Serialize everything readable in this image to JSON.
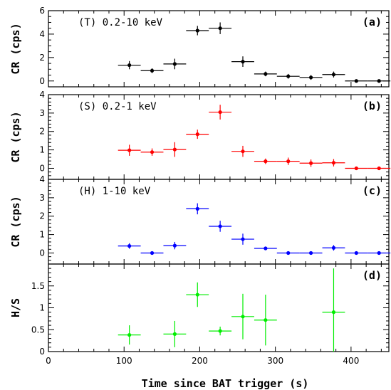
{
  "chart_data": {
    "type": "scatter",
    "xlabel": "Time since BAT trigger (s)",
    "xlim": [
      0,
      450
    ],
    "x_ticks": [
      0,
      100,
      200,
      300,
      400
    ],
    "panels": [
      {
        "id": "a",
        "tag": "(a)",
        "label": "(T) 0.2-10 keV",
        "ylabel": "CR (cps)",
        "ylim": [
          -0.5,
          6
        ],
        "y_ticks": [
          0,
          2,
          4,
          6
        ],
        "color": "#000000",
        "points": [
          {
            "x": 107,
            "xerr": 15,
            "y": 1.35,
            "yerr": 0.35
          },
          {
            "x": 137,
            "xerr": 15,
            "y": 0.88,
            "yerr": 0.2
          },
          {
            "x": 167,
            "xerr": 15,
            "y": 1.45,
            "yerr": 0.45
          },
          {
            "x": 197,
            "xerr": 15,
            "y": 4.3,
            "yerr": 0.4
          },
          {
            "x": 227,
            "xerr": 15,
            "y": 4.5,
            "yerr": 0.5
          },
          {
            "x": 257,
            "xerr": 15,
            "y": 1.65,
            "yerr": 0.45
          },
          {
            "x": 287,
            "xerr": 15,
            "y": 0.6,
            "yerr": 0.2
          },
          {
            "x": 317,
            "xerr": 15,
            "y": 0.4,
            "yerr": 0.2
          },
          {
            "x": 347,
            "xerr": 15,
            "y": 0.3,
            "yerr": 0.2
          },
          {
            "x": 377,
            "xerr": 15,
            "y": 0.55,
            "yerr": 0.25
          },
          {
            "x": 407,
            "xerr": 15,
            "y": 0.0,
            "yerr": 0.0
          },
          {
            "x": 437,
            "xerr": 15,
            "y": 0.0,
            "yerr": 0.0
          }
        ]
      },
      {
        "id": "b",
        "tag": "(b)",
        "label": "(S) 0.2-1 keV",
        "ylabel": "CR (cps)",
        "ylim": [
          -0.6,
          4
        ],
        "y_ticks": [
          0,
          1,
          2,
          3,
          4
        ],
        "color": "#ff0000",
        "points": [
          {
            "x": 107,
            "xerr": 15,
            "y": 0.98,
            "yerr": 0.3
          },
          {
            "x": 137,
            "xerr": 15,
            "y": 0.88,
            "yerr": 0.2
          },
          {
            "x": 167,
            "xerr": 15,
            "y": 1.02,
            "yerr": 0.4
          },
          {
            "x": 197,
            "xerr": 15,
            "y": 1.85,
            "yerr": 0.25
          },
          {
            "x": 227,
            "xerr": 15,
            "y": 3.05,
            "yerr": 0.4
          },
          {
            "x": 257,
            "xerr": 15,
            "y": 0.92,
            "yerr": 0.3
          },
          {
            "x": 287,
            "xerr": 15,
            "y": 0.38,
            "yerr": 0.15
          },
          {
            "x": 317,
            "xerr": 15,
            "y": 0.38,
            "yerr": 0.2
          },
          {
            "x": 347,
            "xerr": 15,
            "y": 0.28,
            "yerr": 0.2
          },
          {
            "x": 377,
            "xerr": 15,
            "y": 0.3,
            "yerr": 0.2
          },
          {
            "x": 407,
            "xerr": 15,
            "y": 0.0,
            "yerr": 0.0
          },
          {
            "x": 437,
            "xerr": 15,
            "y": 0.0,
            "yerr": 0.0
          }
        ]
      },
      {
        "id": "c",
        "tag": "(c)",
        "label": "(H) 1-10 keV",
        "ylabel": "CR (cps)",
        "ylim": [
          -0.6,
          4
        ],
        "y_ticks": [
          0,
          1,
          2,
          3,
          4
        ],
        "color": "#0000ff",
        "points": [
          {
            "x": 107,
            "xerr": 15,
            "y": 0.38,
            "yerr": 0.15
          },
          {
            "x": 137,
            "xerr": 15,
            "y": 0.0,
            "yerr": 0.0
          },
          {
            "x": 167,
            "xerr": 15,
            "y": 0.4,
            "yerr": 0.2
          },
          {
            "x": 197,
            "xerr": 15,
            "y": 2.4,
            "yerr": 0.3
          },
          {
            "x": 227,
            "xerr": 15,
            "y": 1.45,
            "yerr": 0.3
          },
          {
            "x": 257,
            "xerr": 15,
            "y": 0.75,
            "yerr": 0.3
          },
          {
            "x": 287,
            "xerr": 15,
            "y": 0.25,
            "yerr": 0.1
          },
          {
            "x": 317,
            "xerr": 15,
            "y": 0.0,
            "yerr": 0.0
          },
          {
            "x": 347,
            "xerr": 15,
            "y": 0.0,
            "yerr": 0.0
          },
          {
            "x": 377,
            "xerr": 15,
            "y": 0.28,
            "yerr": 0.15
          },
          {
            "x": 407,
            "xerr": 15,
            "y": 0.0,
            "yerr": 0.0
          },
          {
            "x": 437,
            "xerr": 15,
            "y": 0.0,
            "yerr": 0.0
          }
        ]
      },
      {
        "id": "d",
        "tag": "(d)",
        "label": "",
        "ylabel": "H/S",
        "ylim": [
          0,
          2
        ],
        "y_ticks": [
          0,
          0.5,
          1,
          1.5
        ],
        "color": "#00ee00",
        "points": [
          {
            "x": 107,
            "xerr": 15,
            "y": 0.38,
            "yerr": 0.22
          },
          {
            "x": 167,
            "xerr": 15,
            "y": 0.4,
            "yerr": 0.3
          },
          {
            "x": 197,
            "xerr": 15,
            "y": 1.3,
            "yerr": 0.28
          },
          {
            "x": 227,
            "xerr": 15,
            "y": 0.47,
            "yerr": 0.1
          },
          {
            "x": 257,
            "xerr": 15,
            "y": 0.8,
            "yerr": 0.52
          },
          {
            "x": 287,
            "xerr": 15,
            "y": 0.72,
            "yerr": 0.58
          },
          {
            "x": 377,
            "xerr": 15,
            "y": 0.9,
            "yerr": 1.0
          }
        ]
      }
    ]
  }
}
